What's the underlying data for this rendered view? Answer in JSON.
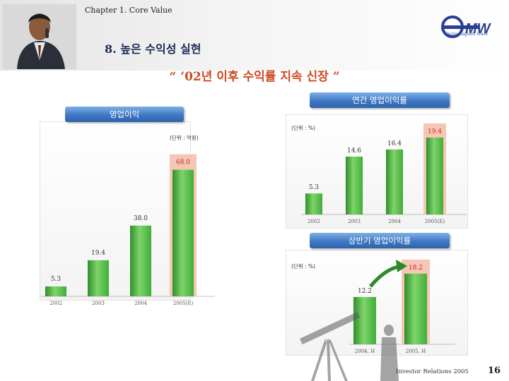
{
  "header": {
    "chapter": "Chapter 1. Core Value",
    "title": "8. 높은 수익성 실현",
    "subtitle": "“ ’02년 이후 수익률 지속 신장 ”"
  },
  "logo": {
    "text": "MW",
    "tagline": "Electro Magnetic Wave"
  },
  "colors": {
    "bar_green": "#3fae3a",
    "highlight_pink": "#f6c6b4",
    "pill_blue": "#3f78c4",
    "title_orange": "#cc4a1f"
  },
  "footer": {
    "text": "Investor Relations 2005",
    "page": "16"
  },
  "chart_data": [
    {
      "type": "bar",
      "title": "영업이익",
      "unit": "(단위 : 억원)",
      "categories": [
        "2002",
        "2003",
        "2004",
        "2005(E)"
      ],
      "values": [
        5.3,
        19.4,
        38.0,
        68.0
      ],
      "value_labels": [
        "5.3",
        "19.4",
        "38.0",
        "68.0"
      ],
      "highlight_index": 3,
      "ylim": [
        0,
        75
      ]
    },
    {
      "type": "bar",
      "title": "연간 영업이익률",
      "unit": "(단위 : %)",
      "categories": [
        "2002",
        "2003",
        "2004",
        "2005(E)"
      ],
      "values": [
        5.3,
        14.6,
        16.4,
        19.4
      ],
      "value_labels": [
        "5.3",
        "14.6",
        "16.4",
        "19.4"
      ],
      "highlight_index": 3,
      "ylim": [
        0,
        21
      ]
    },
    {
      "type": "bar",
      "title": "상반기 영업이익률",
      "unit": "(단위 : %)",
      "categories": [
        "2004. H",
        "2005. H"
      ],
      "values": [
        12.2,
        18.2
      ],
      "value_labels": [
        "12.2",
        "18.2"
      ],
      "highlight_index": 1,
      "ylim": [
        0,
        20
      ]
    }
  ]
}
